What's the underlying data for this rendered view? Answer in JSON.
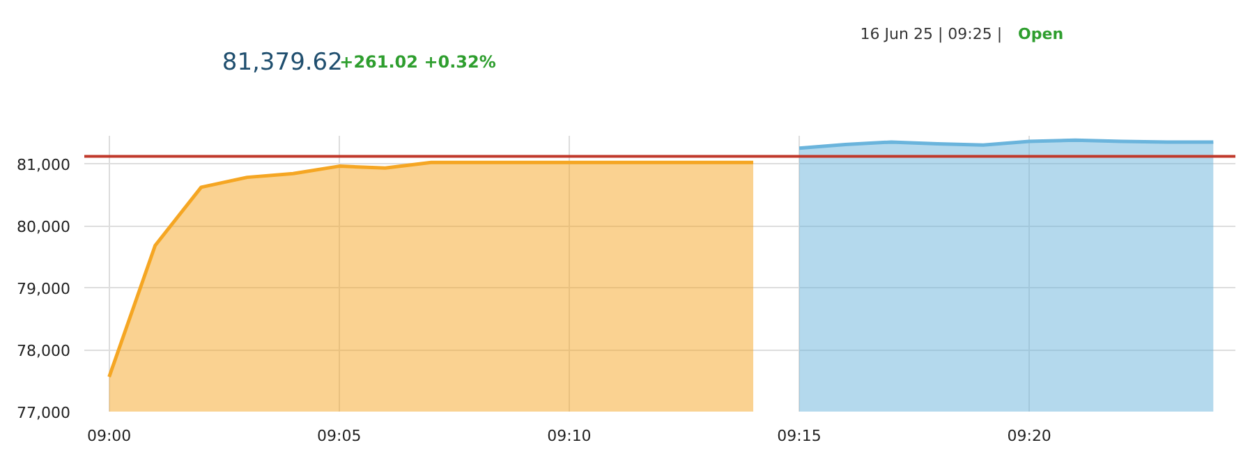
{
  "chart_data": {
    "type": "area",
    "title": "81,379.62",
    "subtitle": "+261.02 +0.32%",
    "annotations": [
      "16 Jun 25 | 09:25 |",
      "Open"
    ],
    "series": [
      {
        "color": "#f5a623",
        "x": [
          9.0,
          9.016667,
          9.033333,
          9.05,
          9.066667,
          9.083333,
          9.1,
          9.116667,
          9.133333,
          9.15,
          9.166667,
          9.183333,
          9.2,
          9.216667,
          9.233333
        ],
        "values": [
          77560,
          79680,
          80620,
          80780,
          80840,
          80960,
          80930,
          81020,
          81020,
          81020,
          81020,
          81020,
          81020,
          81020,
          81020
        ]
      },
      {
        "color": "#6ab4dc",
        "x": [
          9.25,
          9.266667,
          9.283333,
          9.3,
          9.316667,
          9.333333,
          9.35,
          9.366667,
          9.383333,
          9.4
        ],
        "values": [
          81250,
          81310,
          81350,
          81320,
          81300,
          81360,
          81380,
          81360,
          81350,
          81350
        ]
      }
    ],
    "ref_lines": [
      {
        "axis": "y",
        "value": 81118.6,
        "color": "#c0392b"
      }
    ],
    "xlim": [
      8.991,
      9.408
    ],
    "ylim": [
      77000,
      81450
    ],
    "xticks": [
      {
        "value": 9.0,
        "label": "09:00"
      },
      {
        "value": 9.083333,
        "label": "09:05"
      },
      {
        "value": 9.166667,
        "label": "09:10"
      },
      {
        "value": 9.25,
        "label": "09:15"
      },
      {
        "value": 9.333333,
        "label": "09:20"
      }
    ],
    "yticks": [
      {
        "value": 77000,
        "label": "77,000"
      },
      {
        "value": 78000,
        "label": "78,000"
      },
      {
        "value": 79000,
        "label": "79,000"
      },
      {
        "value": 80000,
        "label": "80,000"
      },
      {
        "value": 81000,
        "label": "81,000"
      }
    ],
    "grid": true
  }
}
